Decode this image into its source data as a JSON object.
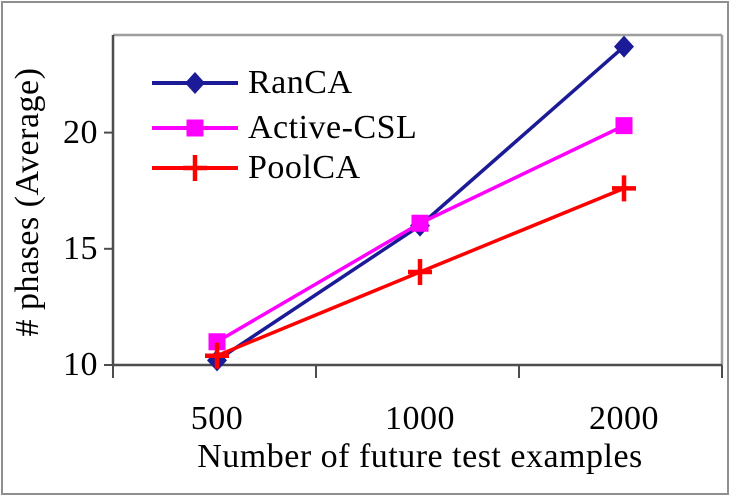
{
  "figure": {
    "background_color": "#ffffff",
    "border_color": "#8f8f8f"
  },
  "chart_data": {
    "type": "line",
    "title": "",
    "xlabel": "Number of future test examples",
    "ylabel": "# phases (Average)",
    "categories": [
      "500",
      "1000",
      "2000"
    ],
    "x_values": [
      500,
      1000,
      2000
    ],
    "yticks": [
      "10",
      "15",
      "20"
    ],
    "ylim": [
      10,
      24.2
    ],
    "grid": false,
    "legend_position": "top-left-inside",
    "axis_color": "#4d4d4d",
    "box_color": "#9e9e9e",
    "series": [
      {
        "name": "RanCA",
        "marker": "diamond",
        "color": "#1b1b97",
        "values": [
          10.2,
          16.0,
          23.7
        ]
      },
      {
        "name": "Active-CSL",
        "marker": "square",
        "color": "#ff00ff",
        "values": [
          11.0,
          16.1,
          20.3
        ]
      },
      {
        "name": "PoolCA",
        "marker": "plus",
        "color": "#ff0000",
        "values": [
          10.4,
          14.0,
          17.6
        ]
      }
    ]
  }
}
